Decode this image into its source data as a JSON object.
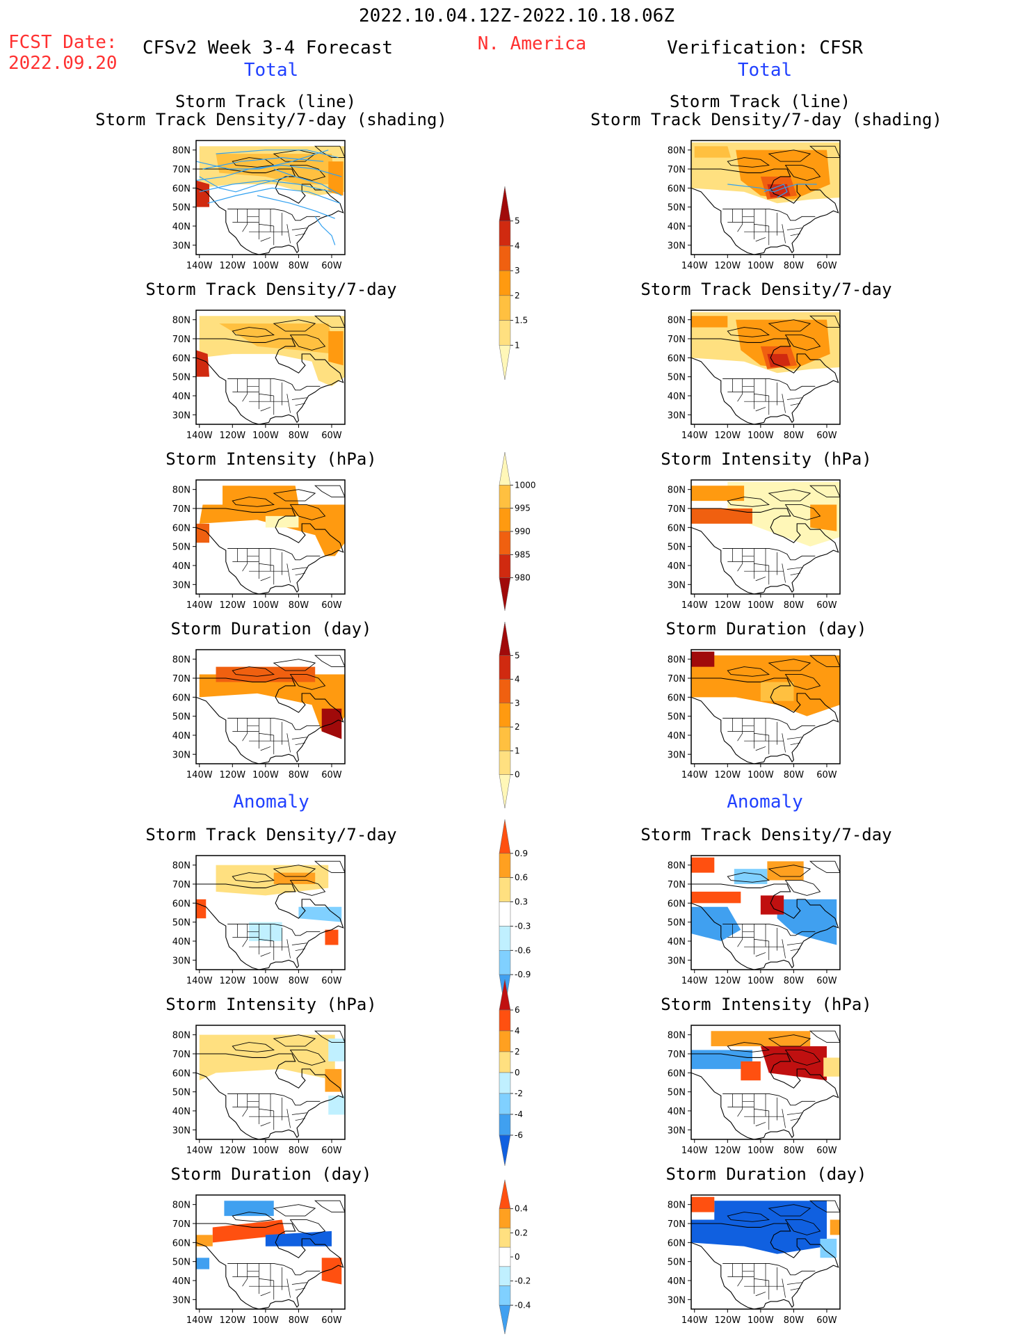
{
  "header": {
    "date_range": "2022.10.04.12Z-2022.10.18.06Z",
    "fcst_label": "FCST Date:",
    "fcst_date": "2022.09.20",
    "model_title": "CFSv2 Week 3-4 Forecast",
    "region": "N. America",
    "verification": "Verification: CFSR"
  },
  "sections": {
    "total_label": "Total",
    "anomaly_label": "Anomaly"
  },
  "panel_titles": {
    "track_line": "Storm Track (line)",
    "track_shading": "Storm Track Density/7-day (shading)",
    "density": "Storm Track Density/7-day",
    "intensity": "Storm Intensity (hPa)",
    "duration": "Storm Duration (day)"
  },
  "axes": {
    "lat_ticks": [
      "80N",
      "70N",
      "60N",
      "50N",
      "40N",
      "30N"
    ],
    "lon_ticks": [
      "140W",
      "120W",
      "100W",
      "80W",
      "60W"
    ]
  },
  "colorbars": {
    "density_total": [
      "5",
      "4",
      "3",
      "2",
      "1.5",
      "1"
    ],
    "intensity_total": [
      "1000",
      "995",
      "990",
      "985",
      "980"
    ],
    "duration_total": [
      "5",
      "4",
      "3",
      "2",
      "1",
      "0"
    ],
    "density_anom": [
      "0.9",
      "0.6",
      "0.3",
      "-0.3",
      "-0.6",
      "-0.9"
    ],
    "intensity_anom": [
      "6",
      "4",
      "2",
      "0",
      "-2",
      "-4",
      "-6"
    ],
    "duration_anom": [
      "0.4",
      "0.2",
      "0",
      "-0.2",
      "-0.4"
    ]
  },
  "palette": {
    "seq": [
      "#fff7b8",
      "#ffe080",
      "#ffc040",
      "#ff9a10",
      "#f06010",
      "#d02a10",
      "#a00a0a"
    ],
    "div_warm": [
      "#ffe080",
      "#ffa020",
      "#ff5010",
      "#c01010"
    ],
    "div_cool": [
      "#c0f0ff",
      "#80d0ff",
      "#40a0f0",
      "#1060e0"
    ],
    "track_line": "#30a0f0"
  },
  "chart_data": {
    "type": "heatmap",
    "region": "N. America",
    "columns": [
      "CFSv2 Week 3-4 Forecast",
      "Verification: CFSR"
    ],
    "rows_total": [
      "Storm Track (line) / Storm Track Density/7-day (shading)",
      "Storm Track Density/7-day",
      "Storm Intensity (hPa)",
      "Storm Duration (day)"
    ],
    "rows_anomaly": [
      "Storm Track Density/7-day",
      "Storm Intensity (hPa)",
      "Storm Duration (day)"
    ],
    "lat_range": [
      25,
      85
    ],
    "lon_range": [
      -142,
      -52
    ],
    "grid": false
  }
}
